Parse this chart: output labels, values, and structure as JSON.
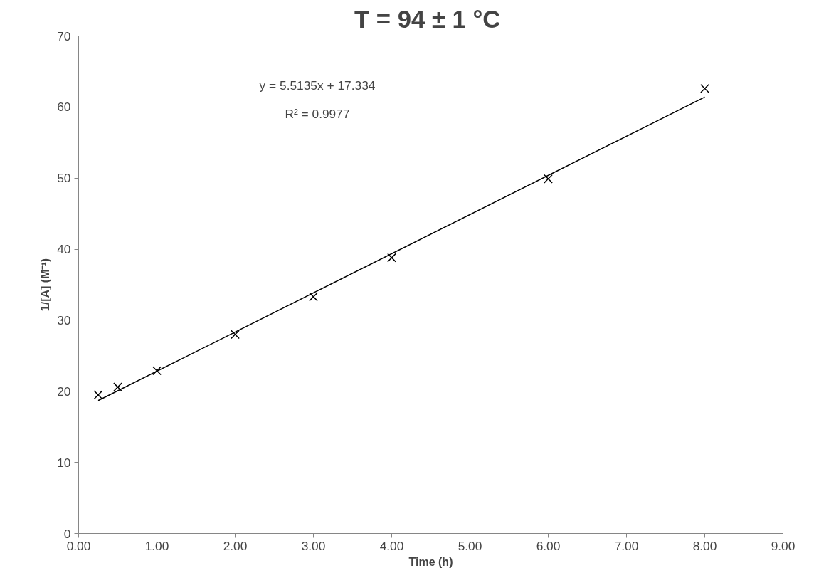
{
  "chart_data": {
    "type": "scatter",
    "title": "T = 94 ± 1  °C",
    "xlabel": "Time (h)",
    "ylabel": "1/[A] (M⁻¹)",
    "x": [
      0.25,
      0.5,
      1,
      2,
      3,
      4,
      6,
      8
    ],
    "series": [
      {
        "color": "#000000",
        "marker": "cross",
        "values": [
          19.5,
          20.6,
          22.9,
          28.0,
          33.3,
          38.8,
          49.9,
          62.6
        ]
      },
      {
        "type": "line",
        "color": "#000000",
        "marker": "none",
        "line_style": "solid",
        "x": [
          0.25,
          8
        ],
        "values": [
          18.7,
          61.4
        ]
      }
    ],
    "annotations": [
      "y = 5.5135x + 17.334",
      "R² = 0.9977"
    ],
    "xlim": [
      0,
      9
    ],
    "ylim": [
      0,
      70
    ],
    "xticks": [
      {
        "value": 0,
        "label": "0.00"
      },
      {
        "value": 1,
        "label": "1.00"
      },
      {
        "value": 2,
        "label": "2.00"
      },
      {
        "value": 3,
        "label": "3.00"
      },
      {
        "value": 4,
        "label": "4.00"
      },
      {
        "value": 5,
        "label": "5.00"
      },
      {
        "value": 6,
        "label": "6.00"
      },
      {
        "value": 7,
        "label": "7.00"
      },
      {
        "value": 8,
        "label": "8.00"
      },
      {
        "value": 9,
        "label": "9.00"
      }
    ],
    "yticks": [
      0,
      10,
      20,
      30,
      40,
      50,
      60,
      70
    ],
    "grid": false
  }
}
